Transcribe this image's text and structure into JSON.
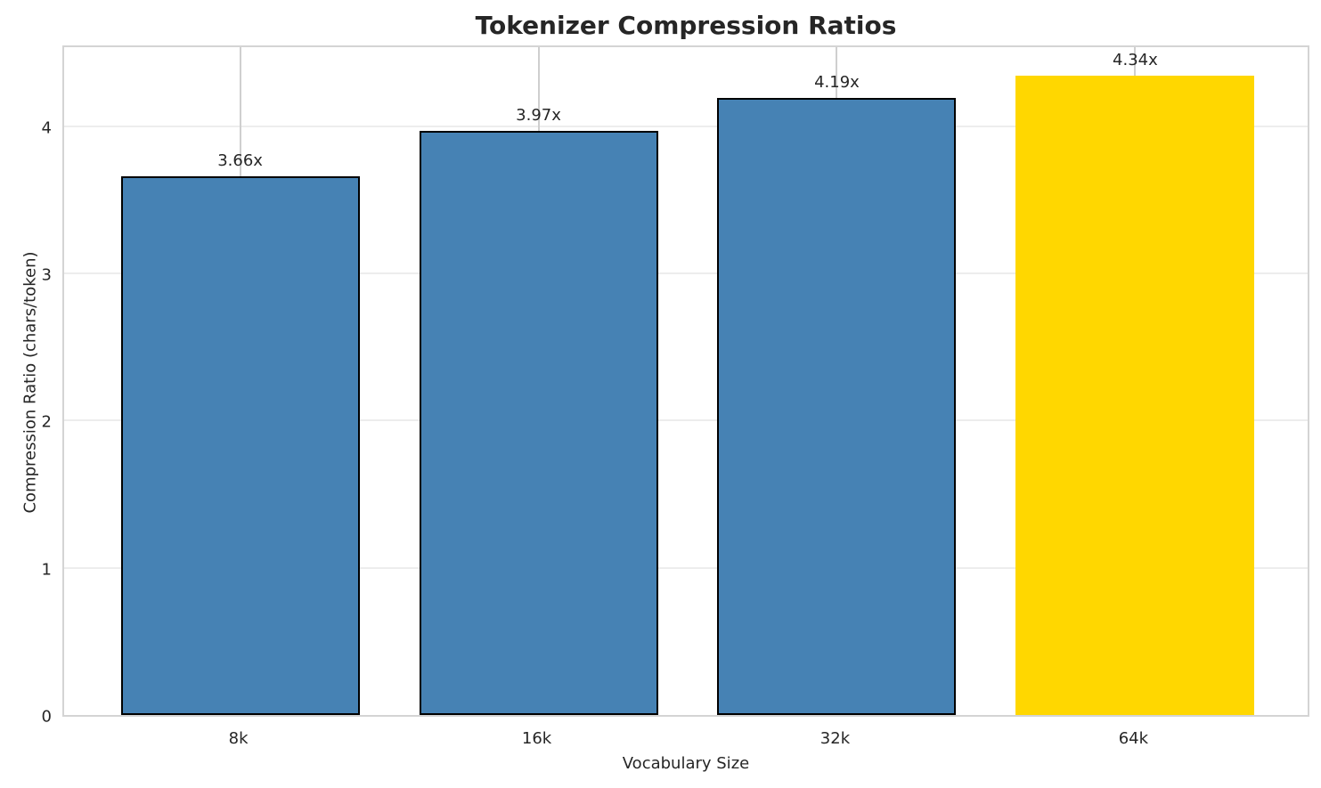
{
  "chart_data": {
    "type": "bar",
    "title": "Tokenizer Compression Ratios",
    "xlabel": "Vocabulary Size",
    "ylabel": "Compression Ratio (chars/token)",
    "categories": [
      "8k",
      "16k",
      "32k",
      "64k"
    ],
    "values": [
      3.66,
      3.97,
      4.19,
      4.34
    ],
    "bar_labels": [
      "3.66x",
      "3.97x",
      "4.19x",
      "4.34x"
    ],
    "bar_colors": [
      "#4682B4",
      "#4682B4",
      "#4682B4",
      "#FFD700"
    ],
    "bar_edge_colors": [
      "#000000",
      "#000000",
      "#000000",
      "none"
    ],
    "yticks": [
      0,
      1,
      2,
      3,
      4
    ],
    "ylim": [
      0,
      4.56
    ],
    "xlim_pad_units": 0.59,
    "bar_width_units": 0.8,
    "grid": "on",
    "legend": "none",
    "colors": {
      "text": "#262626",
      "grid_vertical": "#cfcfcf",
      "grid_horizontal": "#ededed",
      "spine": "#d4d4d4",
      "background": "#ffffff",
      "accent_bar": "#4682B4",
      "highlight_bar": "#FFD700"
    }
  }
}
